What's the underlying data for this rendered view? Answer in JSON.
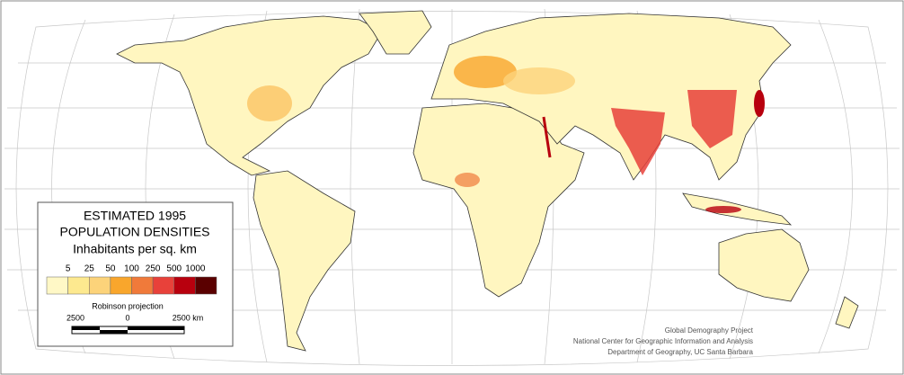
{
  "legend": {
    "title": [
      "ESTIMATED 1995",
      "POPULATION DENSITIES"
    ],
    "subtitle": "Inhabitants per sq. km",
    "breaks": [
      "5",
      "25",
      "50",
      "100",
      "250",
      "500",
      "1000"
    ],
    "colors": [
      "#fff8c6",
      "#fde98f",
      "#fcd37a",
      "#f9a62c",
      "#f07a3a",
      "#e8413a",
      "#b8000e",
      "#5a0000"
    ]
  },
  "scale_bar": {
    "title": "Robinson projection",
    "labels": [
      "2500",
      "0",
      "2500 km"
    ]
  },
  "credits": [
    "Global Demography Project",
    "National Center for Geographic Information and Analysis",
    "Department of Geography, UC Santa Barbara"
  ]
}
